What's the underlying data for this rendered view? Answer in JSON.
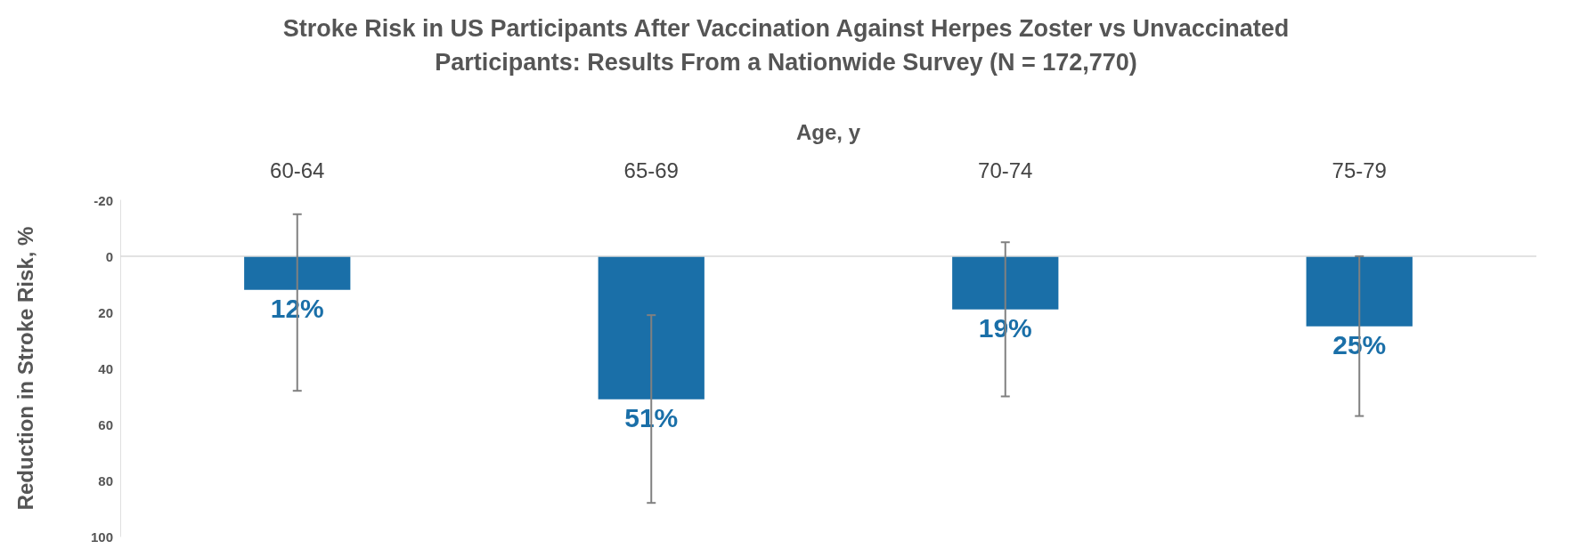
{
  "chart_data": {
    "type": "bar",
    "title": "Stroke Risk in US Participants After Vaccination Against Herpes Zoster vs Unvaccinated\nParticipants: Results From a Nationwide Survey (N = 172,770)",
    "xlabel": "Age, y",
    "ylabel": "Reduction in Stroke Risk, %",
    "categories": [
      "60-64",
      "65-69",
      "70-74",
      "75-79"
    ],
    "values": [
      12,
      51,
      19,
      25
    ],
    "color": "#1a6fa8",
    "errors": [
      [
        -15,
        48
      ],
      [
        21,
        88
      ],
      [
        -5,
        50
      ],
      [
        0,
        57
      ]
    ],
    "value_labels": [
      "12%",
      "51%",
      "19%",
      "25%"
    ],
    "ylim": [
      100,
      -20
    ],
    "yticks": [
      -20,
      0,
      20,
      40,
      60,
      80,
      100
    ],
    "ref_lines": [
      {
        "axis": "y",
        "value": 0,
        "color": "#d9d9d9"
      }
    ],
    "grid": false
  }
}
